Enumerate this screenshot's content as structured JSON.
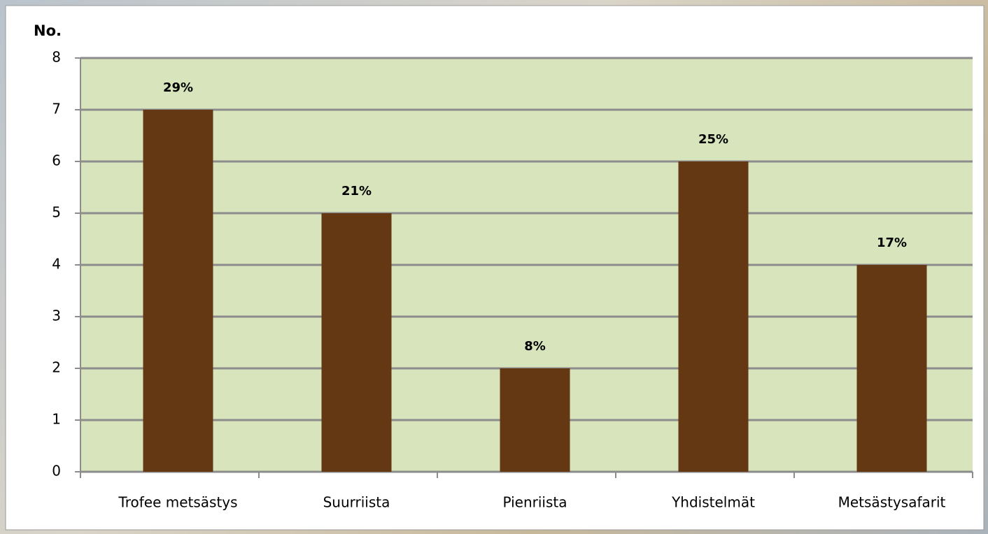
{
  "chart_data": {
    "type": "bar",
    "ylabel": "No.",
    "categories": [
      "Trofee metsästys",
      "Suurriista",
      "Pienriista",
      "Yhdistelmät",
      "Metsästysafarit"
    ],
    "values": [
      7,
      5,
      2,
      6,
      4
    ],
    "percentages": [
      "29%",
      "21%",
      "8%",
      "25%",
      "17%"
    ],
    "color": "#633812",
    "plot_background": "#d8e4bc",
    "ylim": [
      0,
      8
    ],
    "yticks": [
      0,
      1,
      2,
      3,
      4,
      5,
      6,
      7,
      8
    ],
    "grid": true
  }
}
